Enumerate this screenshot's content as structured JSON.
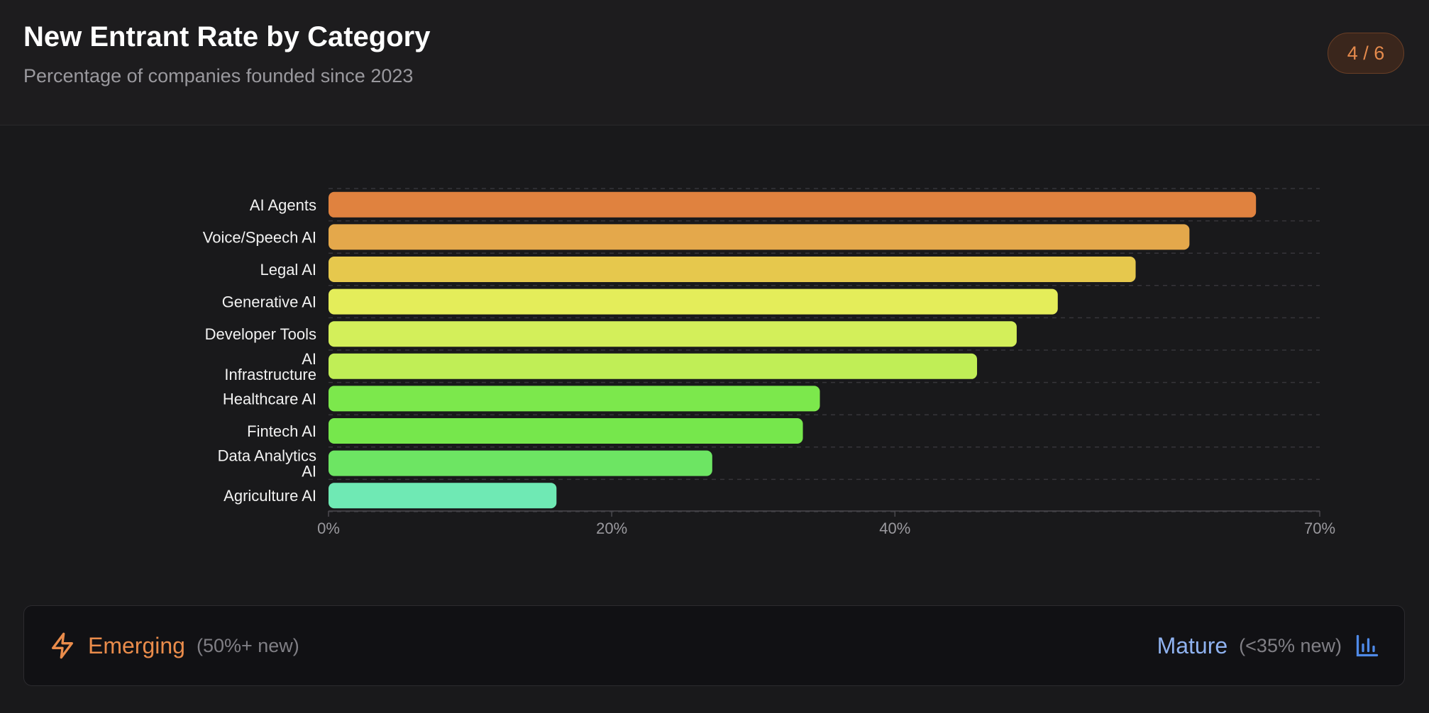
{
  "header": {
    "title": "New Entrant Rate by Category",
    "subtitle": "Percentage of companies founded since 2023",
    "page_indicator": "4 / 6"
  },
  "chart_data": {
    "type": "bar",
    "orientation": "horizontal",
    "categories": [
      "AI Agents",
      "Voice/Speech AI",
      "Legal AI",
      "Generative AI",
      "Developer Tools",
      "AI Infrastructure",
      "Healthcare AI",
      "Fintech AI",
      "Data Analytics AI",
      "Agriculture AI"
    ],
    "values": [
      65.5,
      60.8,
      57,
      51.5,
      48.6,
      45.8,
      34.7,
      33.5,
      27.1,
      16.1
    ],
    "colors": [
      "#e0823f",
      "#e4a84b",
      "#e6c84d",
      "#e4ed5a",
      "#d3ef5a",
      "#c0ee56",
      "#7ce84c",
      "#76e74c",
      "#6de563",
      "#6fe9b4"
    ],
    "xlim": [
      0,
      70
    ],
    "xticks": [
      0,
      20,
      40,
      70
    ],
    "xtick_labels": [
      "0%",
      "20%",
      "40%",
      "70%"
    ],
    "grid": "horizontal dashed",
    "title": "New Entrant Rate by Category",
    "xlabel": "",
    "ylabel": ""
  },
  "legend": {
    "emerging_label": "Emerging",
    "emerging_note": "(50%+ new)",
    "emerging_color": "#ea8c4b",
    "emerging_icon": "lightning-icon",
    "mature_label": "Mature",
    "mature_note": "(<35% new)",
    "mature_color": "#8fb2f0",
    "mature_icon": "bar-chart-icon"
  }
}
